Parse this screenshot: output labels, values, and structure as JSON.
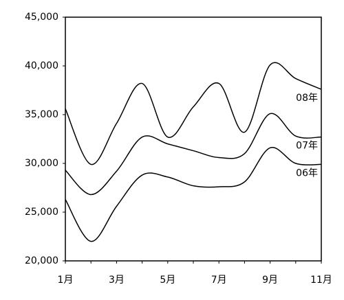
{
  "chart_data": {
    "type": "line",
    "categories": [
      "1月",
      null,
      "3月",
      null,
      "5月",
      null,
      "7月",
      null,
      "9月",
      null,
      "11月"
    ],
    "series": [
      {
        "name": "08年",
        "color": "#000000",
        "values": [
          35600,
          29900,
          34100,
          38200,
          32700,
          35800,
          38200,
          33200,
          40100,
          38700,
          37600
        ]
      },
      {
        "name": "07年",
        "color": "#000000",
        "values": [
          29300,
          26800,
          29200,
          32700,
          32000,
          31300,
          30600,
          31000,
          35100,
          32800,
          32700
        ]
      },
      {
        "name": "06年",
        "color": "#000000",
        "values": [
          26300,
          22000,
          25600,
          28800,
          28600,
          27700,
          27600,
          28100,
          31600,
          30000,
          29900
        ]
      }
    ],
    "ylim": [
      20000,
      45000
    ],
    "yticks": [
      {
        "value": 20000,
        "label": "20,000"
      },
      {
        "value": 25000,
        "label": "25,000"
      },
      {
        "value": 30000,
        "label": "30,000"
      },
      {
        "value": 35000,
        "label": "35,000"
      },
      {
        "value": 40000,
        "label": "40,000"
      },
      {
        "value": 45000,
        "label": "45,000"
      }
    ],
    "grid": false
  }
}
